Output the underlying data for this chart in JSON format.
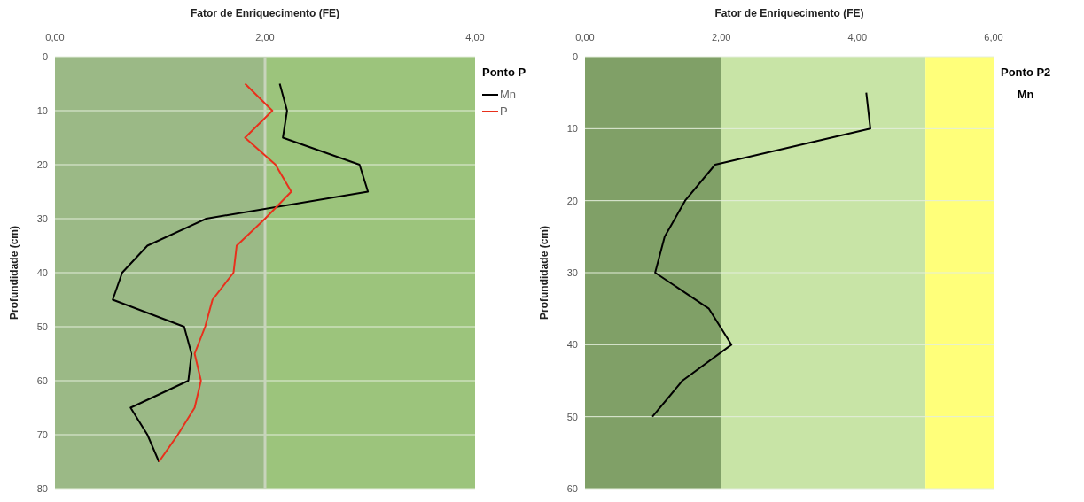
{
  "chart_data": [
    {
      "type": "line",
      "xlabel": "Fator de Enriquecimento (FE)",
      "ylabel": "Profundidade (cm)",
      "legend_title": "Ponto P",
      "legend": "right",
      "grid": "y",
      "xlim": [
        0,
        4
      ],
      "xticks": [
        {
          "value": 0,
          "label": "0,00"
        },
        {
          "value": 2,
          "label": "2,00"
        },
        {
          "value": 4,
          "label": "4,00"
        }
      ],
      "ylim": [
        80,
        0
      ],
      "yticks": [
        0,
        10,
        20,
        30,
        40,
        50,
        60,
        70,
        80
      ],
      "bands": [
        {
          "axis": "x",
          "from": 0,
          "to": 2,
          "color": "#9bb986"
        },
        {
          "axis": "x",
          "from": 2,
          "to": 4,
          "color": "#9cc47c"
        }
      ],
      "ref_lines": [
        {
          "axis": "x",
          "value": 2,
          "color": "#c8d4bc"
        }
      ],
      "series": [
        {
          "name": "Mn",
          "color": "#000000",
          "x": [
            2.14,
            2.21,
            2.17,
            2.9,
            2.98,
            1.44,
            0.88,
            0.64,
            0.55,
            1.23,
            1.3,
            1.27,
            0.72,
            0.88,
            0.99
          ],
          "values": [
            5,
            10,
            15,
            20,
            25,
            30,
            35,
            40,
            45,
            50,
            55,
            60,
            65,
            70,
            75
          ]
        },
        {
          "name": "P",
          "color": "#e8301c",
          "x": [
            1.81,
            2.07,
            1.81,
            2.1,
            2.25,
            2.0,
            1.73,
            1.7,
            1.5,
            1.43,
            1.33,
            1.39,
            1.33,
            1.17,
            0.99
          ],
          "values": [
            5,
            10,
            15,
            20,
            25,
            30,
            35,
            40,
            45,
            50,
            55,
            60,
            65,
            70,
            75
          ]
        }
      ]
    },
    {
      "type": "line",
      "xlabel": "Fator de Enriquecimento (FE)",
      "ylabel": "Profundidade (cm)",
      "legend_title": "Ponto P2",
      "annotations": [
        "Mn"
      ],
      "grid": "y",
      "xlim": [
        0,
        6
      ],
      "xticks": [
        {
          "value": 0,
          "label": "0,00"
        },
        {
          "value": 2,
          "label": "2,00"
        },
        {
          "value": 4,
          "label": "4,00"
        },
        {
          "value": 6,
          "label": "6,00"
        }
      ],
      "ylim": [
        60,
        0
      ],
      "yticks": [
        0,
        10,
        20,
        30,
        40,
        50,
        60
      ],
      "bands": [
        {
          "axis": "x",
          "from": 0,
          "to": 2,
          "color": "#80a067"
        },
        {
          "axis": "x",
          "from": 2,
          "to": 5,
          "color": "#c8e4a6"
        },
        {
          "axis": "x",
          "from": 5,
          "to": 6,
          "color": "#ffff7a"
        }
      ],
      "series": [
        {
          "color": "#000000",
          "x": [
            4.13,
            4.19,
            1.91,
            1.47,
            1.17,
            1.03,
            1.82,
            2.15,
            1.43,
            0.99
          ],
          "values": [
            5,
            10,
            15,
            20,
            25,
            30,
            35,
            40,
            45,
            50
          ]
        }
      ]
    }
  ]
}
